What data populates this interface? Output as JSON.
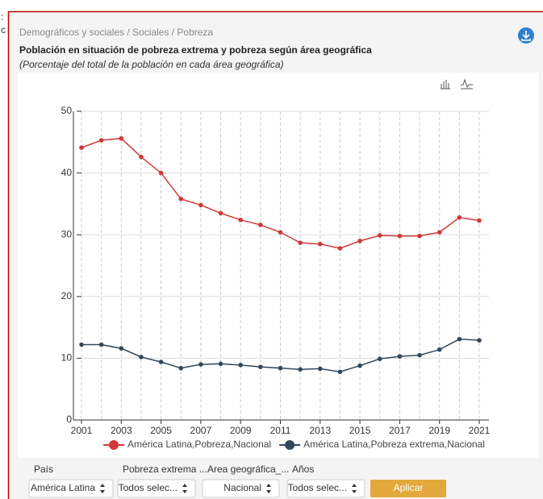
{
  "cut_text": [
    ":",
    "c"
  ],
  "breadcrumb": "Demográficos y sociales / Sociales / Pobreza",
  "chart_data": {
    "type": "line",
    "title": "Población en situación de pobreza extrema y pobreza según área geográfica",
    "subtitle": "(Porcentaje del total de la población en cada área geográfica)",
    "x": [
      2001,
      2002,
      2003,
      2004,
      2005,
      2006,
      2007,
      2008,
      2009,
      2010,
      2011,
      2012,
      2013,
      2014,
      2015,
      2016,
      2017,
      2018,
      2019,
      2020,
      2021
    ],
    "xlim": [
      2001,
      2021
    ],
    "xticks": [
      2001,
      2003,
      2005,
      2007,
      2009,
      2011,
      2013,
      2015,
      2017,
      2019,
      2021
    ],
    "ylim": [
      0,
      50
    ],
    "yticks": [
      0,
      10,
      20,
      30,
      40,
      50
    ],
    "grid": true,
    "legend": "bottom",
    "series": [
      {
        "name": "América Latina,Pobreza,Nacional",
        "color": "#d0383a",
        "values": [
          44.1,
          45.3,
          45.6,
          42.6,
          40.0,
          35.8,
          34.8,
          33.5,
          32.4,
          31.6,
          30.4,
          28.7,
          28.5,
          27.8,
          29.0,
          29.9,
          29.8,
          29.8,
          30.4,
          32.8,
          32.3
        ]
      },
      {
        "name": "América Latina,Pobreza extrema,Nacional",
        "color": "#33475b",
        "values": [
          12.2,
          12.2,
          11.6,
          10.2,
          9.4,
          8.4,
          9.0,
          9.1,
          8.9,
          8.6,
          8.4,
          8.2,
          8.3,
          7.8,
          8.8,
          9.9,
          10.3,
          10.5,
          11.4,
          13.1,
          12.9
        ]
      }
    ]
  },
  "filters": [
    {
      "label": "País",
      "value": "América Latina"
    },
    {
      "label": "Pobreza extrema ...",
      "value": "Todos selec..."
    },
    {
      "label": "Area geográfica_...",
      "value": "Nacional"
    },
    {
      "label": "Años",
      "value": "Todos selec..."
    }
  ],
  "button": "Aplicar"
}
